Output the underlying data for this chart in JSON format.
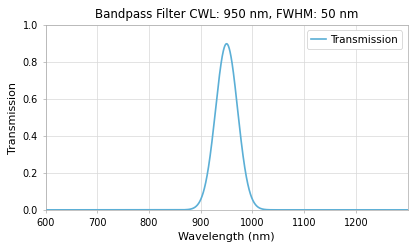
{
  "title": "Bandpass Filter CWL: 950 nm, FWHM: 50 nm",
  "xlabel": "Wavelength (nm)",
  "ylabel": "Transmission",
  "legend_label": "Transmission",
  "cwl": 950,
  "fwhm": 50,
  "peak_transmission": 0.9,
  "x_min": 600,
  "x_max": 1300,
  "y_min": 0.0,
  "y_max": 1.0,
  "x_ticks": [
    600,
    700,
    800,
    900,
    1000,
    1100,
    1200
  ],
  "y_ticks": [
    0.0,
    0.2,
    0.4,
    0.6,
    0.8,
    1.0
  ],
  "line_color": "#5bafd6",
  "line_width": 1.2,
  "grid_color": "#d8d8d8",
  "background_color": "#ffffff",
  "plot_bg_color": "#ffffff",
  "spine_color": "#aaaaaa",
  "title_fontsize": 8.5,
  "axis_label_fontsize": 8,
  "tick_fontsize": 7,
  "legend_fontsize": 7.5
}
